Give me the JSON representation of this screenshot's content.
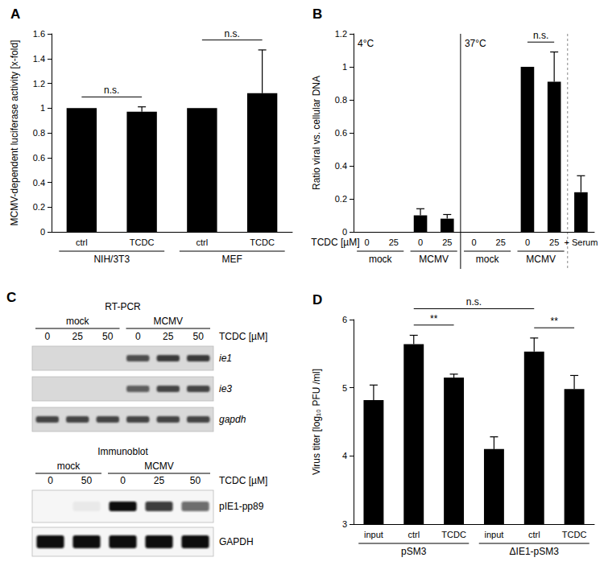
{
  "chart_data": [
    {
      "type": "bar",
      "panel_label": "A",
      "ylabel": "MCMV-dependent luciferase activity [x-fold]",
      "categories": [
        "ctrl",
        "TCDC",
        "ctrl",
        "TCDC"
      ],
      "values": [
        1.0,
        0.97,
        1.0,
        1.12
      ],
      "errors": [
        0,
        0.04,
        0,
        0.35
      ],
      "groups": [
        {
          "label": "NIH/3T3",
          "from": 0,
          "to": 1
        },
        {
          "label": "MEF",
          "from": 2,
          "to": 3
        }
      ],
      "annotations": [
        {
          "text": "n.s.",
          "from": 0,
          "to": 1
        },
        {
          "text": "n.s.",
          "from": 2,
          "to": 3
        }
      ],
      "color": "#000000",
      "ylim": [
        0,
        1.6
      ],
      "yticks": [
        0,
        0.2,
        0.4,
        0.6,
        0.8,
        1,
        1.2,
        1.4,
        1.6
      ],
      "grid": false
    },
    {
      "type": "bar",
      "panel_label": "B",
      "ylabel": "Ratio viral vs. cellular DNA",
      "xlabel": "TCDC [µM]",
      "categories": [
        "0",
        "25",
        "0",
        "25",
        "0",
        "25",
        "0",
        "25",
        "+ Serum"
      ],
      "values": [
        0,
        0,
        0.1,
        0.08,
        0,
        0,
        1.0,
        0.91,
        0.24
      ],
      "errors": [
        0,
        0,
        0.04,
        0.025,
        0,
        0,
        0,
        0.18,
        0.1
      ],
      "groups": [
        {
          "label": "mock",
          "from": 0,
          "to": 1
        },
        {
          "label": "MCMV",
          "from": 2,
          "to": 3
        },
        {
          "label": "mock",
          "from": 4,
          "to": 5
        },
        {
          "label": "MCMV",
          "from": 6,
          "to": 7
        }
      ],
      "sections": [
        {
          "label": "4°C",
          "from": 0,
          "to": 3
        },
        {
          "label": "37°C",
          "from": 4,
          "to": 7
        }
      ],
      "annotations": [
        {
          "text": "n.s.",
          "from": 6,
          "to": 7
        }
      ],
      "color": "#000000",
      "ylim": [
        0,
        1.2
      ],
      "yticks": [
        0,
        0.2,
        0.4,
        0.6,
        0.8,
        1,
        1.2
      ],
      "grid": false
    },
    {
      "type": "bar",
      "panel_label": "D",
      "ylabel": "Virus titer [log₁₀ PFU /ml]",
      "categories": [
        "input",
        "ctrl",
        "TCDC",
        "input",
        "ctrl",
        "TCDC"
      ],
      "values": [
        4.82,
        5.64,
        5.15,
        4.1,
        5.53,
        4.98
      ],
      "errors": [
        0.22,
        0.13,
        0.05,
        0.18,
        0.2,
        0.2
      ],
      "groups": [
        {
          "label": "pSM3",
          "from": 0,
          "to": 2
        },
        {
          "label": "ΔIE1-pSM3",
          "from": 3,
          "to": 5
        }
      ],
      "annotations": [
        {
          "text": "**",
          "from": 1,
          "to": 2
        },
        {
          "text": "**",
          "from": 4,
          "to": 5
        },
        {
          "text": "n.s.",
          "from": 1,
          "to": 4
        }
      ],
      "color": "#000000",
      "ylim": [
        3,
        6
      ],
      "yticks": [
        3,
        4,
        5,
        6
      ],
      "grid": false
    }
  ],
  "blot": {
    "panel_label": "C",
    "sections": [
      {
        "title": "RT-PCR",
        "lane_label": "TCDC [µM]",
        "lanes": [
          0,
          25,
          50,
          0,
          25,
          50
        ],
        "groups": [
          {
            "label": "mock",
            "from": 0,
            "to": 2
          },
          {
            "label": "MCMV",
            "from": 3,
            "to": 5
          }
        ],
        "rows": [
          {
            "label": "ie1",
            "intensity": [
              0,
              0,
              0,
              0.8,
              0.9,
              0.9
            ]
          },
          {
            "label": "ie3",
            "intensity": [
              0,
              0,
              0,
              0.7,
              0.85,
              0.85
            ]
          },
          {
            "label": "gapdh",
            "intensity": [
              0.85,
              0.85,
              0.85,
              0.85,
              0.85,
              0.85
            ]
          }
        ]
      },
      {
        "title": "Immunoblot",
        "lane_label": "TCDC [µM]",
        "lanes": [
          0,
          50,
          0,
          25,
          50
        ],
        "groups": [
          {
            "label": "mock",
            "from": 0,
            "to": 1
          },
          {
            "label": "MCMV",
            "from": 2,
            "to": 4
          }
        ],
        "rows": [
          {
            "label": "pIE1-pp89",
            "intensity": [
              0,
              0.05,
              1,
              0.8,
              0.6
            ]
          },
          {
            "label": "GAPDH",
            "intensity": [
              1,
              1,
              1,
              1,
              1
            ]
          }
        ]
      }
    ]
  }
}
